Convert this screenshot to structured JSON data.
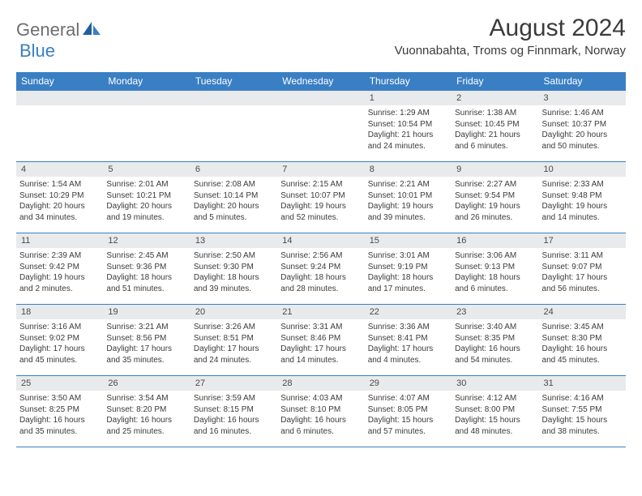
{
  "brand": {
    "part1": "General",
    "part2": "Blue"
  },
  "title": "August 2024",
  "location": "Vuonnabahta, Troms og Finnmark, Norway",
  "colors": {
    "header_bg": "#3a7fc4",
    "header_fg": "#ffffff",
    "daynum_bg": "#e9eaeb",
    "text": "#3b3b3b",
    "row_border": "#3a7fc4",
    "logo_gray": "#6d6e71",
    "logo_blue": "#3a7fc4",
    "background": "#ffffff"
  },
  "typography": {
    "month_title_pt": 30,
    "location_pt": 15,
    "weekday_pt": 12,
    "daynum_pt": 11,
    "body_pt": 10
  },
  "weekdays": [
    "Sunday",
    "Monday",
    "Tuesday",
    "Wednesday",
    "Thursday",
    "Friday",
    "Saturday"
  ],
  "weeks": [
    [
      {
        "n": "",
        "sr": "",
        "ss": "",
        "dl": ""
      },
      {
        "n": "",
        "sr": "",
        "ss": "",
        "dl": ""
      },
      {
        "n": "",
        "sr": "",
        "ss": "",
        "dl": ""
      },
      {
        "n": "",
        "sr": "",
        "ss": "",
        "dl": ""
      },
      {
        "n": "1",
        "sr": "Sunrise: 1:29 AM",
        "ss": "Sunset: 10:54 PM",
        "dl": "Daylight: 21 hours and 24 minutes."
      },
      {
        "n": "2",
        "sr": "Sunrise: 1:38 AM",
        "ss": "Sunset: 10:45 PM",
        "dl": "Daylight: 21 hours and 6 minutes."
      },
      {
        "n": "3",
        "sr": "Sunrise: 1:46 AM",
        "ss": "Sunset: 10:37 PM",
        "dl": "Daylight: 20 hours and 50 minutes."
      }
    ],
    [
      {
        "n": "4",
        "sr": "Sunrise: 1:54 AM",
        "ss": "Sunset: 10:29 PM",
        "dl": "Daylight: 20 hours and 34 minutes."
      },
      {
        "n": "5",
        "sr": "Sunrise: 2:01 AM",
        "ss": "Sunset: 10:21 PM",
        "dl": "Daylight: 20 hours and 19 minutes."
      },
      {
        "n": "6",
        "sr": "Sunrise: 2:08 AM",
        "ss": "Sunset: 10:14 PM",
        "dl": "Daylight: 20 hours and 5 minutes."
      },
      {
        "n": "7",
        "sr": "Sunrise: 2:15 AM",
        "ss": "Sunset: 10:07 PM",
        "dl": "Daylight: 19 hours and 52 minutes."
      },
      {
        "n": "8",
        "sr": "Sunrise: 2:21 AM",
        "ss": "Sunset: 10:01 PM",
        "dl": "Daylight: 19 hours and 39 minutes."
      },
      {
        "n": "9",
        "sr": "Sunrise: 2:27 AM",
        "ss": "Sunset: 9:54 PM",
        "dl": "Daylight: 19 hours and 26 minutes."
      },
      {
        "n": "10",
        "sr": "Sunrise: 2:33 AM",
        "ss": "Sunset: 9:48 PM",
        "dl": "Daylight: 19 hours and 14 minutes."
      }
    ],
    [
      {
        "n": "11",
        "sr": "Sunrise: 2:39 AM",
        "ss": "Sunset: 9:42 PM",
        "dl": "Daylight: 19 hours and 2 minutes."
      },
      {
        "n": "12",
        "sr": "Sunrise: 2:45 AM",
        "ss": "Sunset: 9:36 PM",
        "dl": "Daylight: 18 hours and 51 minutes."
      },
      {
        "n": "13",
        "sr": "Sunrise: 2:50 AM",
        "ss": "Sunset: 9:30 PM",
        "dl": "Daylight: 18 hours and 39 minutes."
      },
      {
        "n": "14",
        "sr": "Sunrise: 2:56 AM",
        "ss": "Sunset: 9:24 PM",
        "dl": "Daylight: 18 hours and 28 minutes."
      },
      {
        "n": "15",
        "sr": "Sunrise: 3:01 AM",
        "ss": "Sunset: 9:19 PM",
        "dl": "Daylight: 18 hours and 17 minutes."
      },
      {
        "n": "16",
        "sr": "Sunrise: 3:06 AM",
        "ss": "Sunset: 9:13 PM",
        "dl": "Daylight: 18 hours and 6 minutes."
      },
      {
        "n": "17",
        "sr": "Sunrise: 3:11 AM",
        "ss": "Sunset: 9:07 PM",
        "dl": "Daylight: 17 hours and 56 minutes."
      }
    ],
    [
      {
        "n": "18",
        "sr": "Sunrise: 3:16 AM",
        "ss": "Sunset: 9:02 PM",
        "dl": "Daylight: 17 hours and 45 minutes."
      },
      {
        "n": "19",
        "sr": "Sunrise: 3:21 AM",
        "ss": "Sunset: 8:56 PM",
        "dl": "Daylight: 17 hours and 35 minutes."
      },
      {
        "n": "20",
        "sr": "Sunrise: 3:26 AM",
        "ss": "Sunset: 8:51 PM",
        "dl": "Daylight: 17 hours and 24 minutes."
      },
      {
        "n": "21",
        "sr": "Sunrise: 3:31 AM",
        "ss": "Sunset: 8:46 PM",
        "dl": "Daylight: 17 hours and 14 minutes."
      },
      {
        "n": "22",
        "sr": "Sunrise: 3:36 AM",
        "ss": "Sunset: 8:41 PM",
        "dl": "Daylight: 17 hours and 4 minutes."
      },
      {
        "n": "23",
        "sr": "Sunrise: 3:40 AM",
        "ss": "Sunset: 8:35 PM",
        "dl": "Daylight: 16 hours and 54 minutes."
      },
      {
        "n": "24",
        "sr": "Sunrise: 3:45 AM",
        "ss": "Sunset: 8:30 PM",
        "dl": "Daylight: 16 hours and 45 minutes."
      }
    ],
    [
      {
        "n": "25",
        "sr": "Sunrise: 3:50 AM",
        "ss": "Sunset: 8:25 PM",
        "dl": "Daylight: 16 hours and 35 minutes."
      },
      {
        "n": "26",
        "sr": "Sunrise: 3:54 AM",
        "ss": "Sunset: 8:20 PM",
        "dl": "Daylight: 16 hours and 25 minutes."
      },
      {
        "n": "27",
        "sr": "Sunrise: 3:59 AM",
        "ss": "Sunset: 8:15 PM",
        "dl": "Daylight: 16 hours and 16 minutes."
      },
      {
        "n": "28",
        "sr": "Sunrise: 4:03 AM",
        "ss": "Sunset: 8:10 PM",
        "dl": "Daylight: 16 hours and 6 minutes."
      },
      {
        "n": "29",
        "sr": "Sunrise: 4:07 AM",
        "ss": "Sunset: 8:05 PM",
        "dl": "Daylight: 15 hours and 57 minutes."
      },
      {
        "n": "30",
        "sr": "Sunrise: 4:12 AM",
        "ss": "Sunset: 8:00 PM",
        "dl": "Daylight: 15 hours and 48 minutes."
      },
      {
        "n": "31",
        "sr": "Sunrise: 4:16 AM",
        "ss": "Sunset: 7:55 PM",
        "dl": "Daylight: 15 hours and 38 minutes."
      }
    ]
  ]
}
